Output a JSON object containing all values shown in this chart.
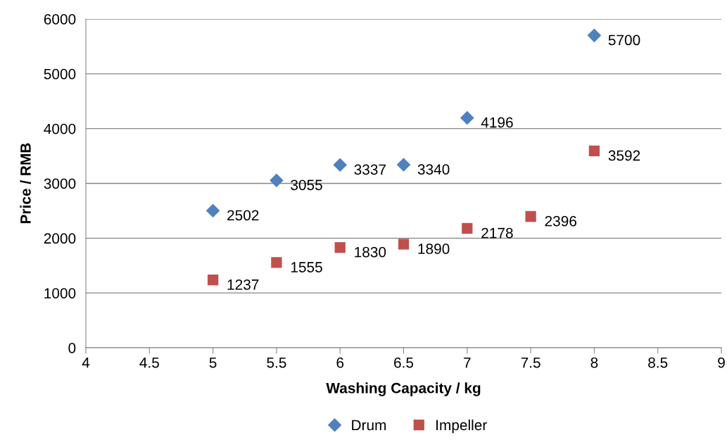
{
  "chart_data": {
    "type": "scatter",
    "xlabel": "Washing Capacity / kg",
    "ylabel": "Price / RMB",
    "xlim": [
      4,
      9
    ],
    "xticks": [
      4,
      4.5,
      5,
      5.5,
      6,
      6.5,
      7,
      7.5,
      8,
      8.5,
      9
    ],
    "ylim": [
      0,
      6000
    ],
    "yticks": [
      0,
      1000,
      2000,
      3000,
      4000,
      5000,
      6000
    ],
    "grid": "y",
    "legend": "bottom",
    "data_labels": true,
    "series": [
      {
        "name": "Drum",
        "color": "#4f81bd",
        "marker": "diamond",
        "x": [
          5,
          5.5,
          6,
          6.5,
          7,
          8
        ],
        "values": [
          2502,
          3055,
          3337,
          3340,
          4196,
          5700
        ]
      },
      {
        "name": "Impeller",
        "color": "#c0504d",
        "marker": "square",
        "x": [
          5,
          5.5,
          6,
          6.5,
          7,
          7.5,
          8
        ],
        "values": [
          1237,
          1555,
          1830,
          1890,
          2178,
          2396,
          3592
        ]
      }
    ]
  }
}
